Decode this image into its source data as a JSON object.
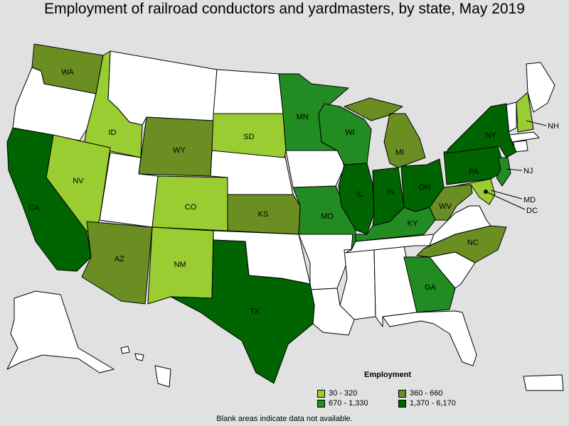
{
  "title": "Employment of railroad conductors and yardmasters, by state, May 2019",
  "legend": {
    "title": "Employment",
    "items": [
      {
        "label": "30 - 320",
        "color": "#9acd32"
      },
      {
        "label": "360 - 660",
        "color": "#6b8e23"
      },
      {
        "label": "670 - 1,330",
        "color": "#228b22"
      },
      {
        "label": "1,370 - 6,170",
        "color": "#006400"
      }
    ]
  },
  "footnote": "Blank areas indicate data not available.",
  "states": {
    "WA": "WA",
    "ID": "ID",
    "WY": "WY",
    "SD": "SD",
    "MN": "MN",
    "WI": "WI",
    "MI": "MI",
    "NY": "NY",
    "NH": "NH",
    "NV": "NV",
    "CA": "CA",
    "CO": "CO",
    "KS": "KS",
    "MO": "MO",
    "IL": "IL",
    "IN": "IN",
    "OH": "OH",
    "PA": "PA",
    "NJ": "NJ",
    "MD": "MD",
    "DC": "DC",
    "KY": "KY",
    "WV": "WV",
    "AZ": "AZ",
    "NM": "NM",
    "TX": "TX",
    "NC": "NC",
    "GA": "GA"
  }
}
